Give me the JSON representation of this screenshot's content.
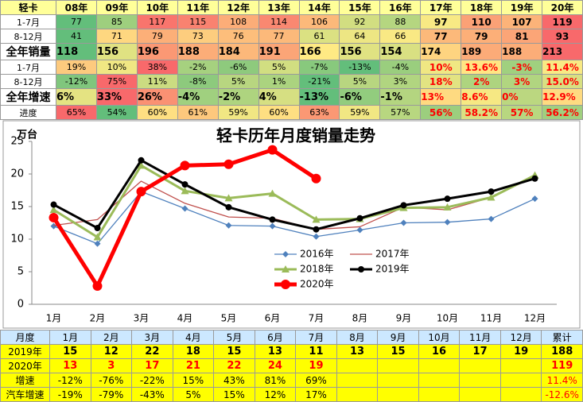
{
  "top_table": {
    "header": [
      "轻卡",
      "08年",
      "09年",
      "10年",
      "11年",
      "12年",
      "13年",
      "14年",
      "15年",
      "16年",
      "17年",
      "18年",
      "19年",
      "20年"
    ],
    "rows": [
      {
        "label": "1-7月",
        "cells": [
          "77",
          "85",
          "117",
          "115",
          "108",
          "114",
          "106",
          "92",
          "88",
          "97",
          "110",
          "107",
          "119"
        ]
      },
      {
        "label": "8-12月",
        "cells": [
          "41",
          "71",
          "79",
          "73",
          "76",
          "77",
          "61",
          "64",
          "66",
          "77",
          "79",
          "81",
          "93"
        ]
      },
      {
        "label": "全年销量",
        "cells": [
          "118",
          "156",
          "196",
          "188",
          "184",
          "191",
          "166",
          "156",
          "154",
          "174",
          "189",
          "188",
          "213"
        ]
      },
      {
        "label": "1-7月",
        "cells": [
          "19%",
          "10%",
          "38%",
          "-2%",
          "-6%",
          "5%",
          "-7%",
          "-13%",
          "-4%",
          "10%",
          "13.6%",
          "-3%",
          "11.4%"
        ]
      },
      {
        "label": "8-12月",
        "cells": [
          "-12%",
          "75%",
          "11%",
          "-8%",
          "5%",
          "1%",
          "-21%",
          "5%",
          "3%",
          "18%",
          "2%",
          "3%",
          "15.0%"
        ]
      },
      {
        "label": "全年增速",
        "cells": [
          "6%",
          "33%",
          "26%",
          "-4%",
          "-2%",
          "4%",
          "-13%",
          "-6%",
          "-1%",
          "13%",
          "8.6%",
          "0%",
          "12.9%"
        ]
      },
      {
        "label": "进度",
        "cells": [
          "65%",
          "54%",
          "60%",
          "61%",
          "59%",
          "60%",
          "63%",
          "59%",
          "57%",
          "56%",
          "58.2%",
          "57%",
          "56.2%"
        ]
      }
    ]
  },
  "chart_data": {
    "type": "line",
    "title": "轻卡历年月度销量走势",
    "y_label": "万台",
    "categories": [
      "1月",
      "2月",
      "3月",
      "4月",
      "5月",
      "6月",
      "7月",
      "8月",
      "9月",
      "10月",
      "11月",
      "12月"
    ],
    "ylim": [
      0,
      25
    ],
    "yticks": [
      0,
      5,
      10,
      15,
      20,
      25
    ],
    "grid": false,
    "series": [
      {
        "name": "2016年",
        "color": "#4f81bd",
        "marker": "diamond",
        "values": [
          12,
          9.3,
          17.3,
          14.7,
          12.1,
          12,
          10.4,
          11.4,
          12.5,
          12.6,
          13.1,
          16.2
        ]
      },
      {
        "name": "2017年",
        "color": "#c0504d",
        "marker": "none",
        "values": [
          12.1,
          13,
          18.9,
          15.5,
          13.4,
          13.2,
          11.5,
          11.9,
          14.9,
          14.5,
          16.4,
          19.6
        ]
      },
      {
        "name": "2018年",
        "color": "#9bbb59",
        "marker": "triangle",
        "values": [
          14.5,
          10.3,
          21.3,
          17.4,
          16.3,
          17,
          13,
          13.1,
          14.8,
          14.9,
          16.4,
          19.8
        ]
      },
      {
        "name": "2019年",
        "color": "#000000",
        "marker": "circle",
        "values": [
          15.3,
          11.7,
          22.1,
          18.4,
          14.9,
          13,
          11.5,
          13.2,
          15.2,
          16.2,
          17.3,
          19.3
        ]
      },
      {
        "name": "2020年",
        "color": "#ff0000",
        "marker": "circle",
        "values": [
          13.3,
          2.8,
          17.3,
          21.3,
          21.5,
          23.7,
          19.3,
          null,
          null,
          null,
          null,
          null
        ]
      }
    ]
  },
  "bottom_table": {
    "header": [
      "月度",
      "1月",
      "2月",
      "3月",
      "4月",
      "5月",
      "6月",
      "7月",
      "8月",
      "9月",
      "10月",
      "11月",
      "12月",
      "累计"
    ],
    "rows": [
      {
        "label": "2019年",
        "cells": [
          "15",
          "12",
          "22",
          "18",
          "15",
          "13",
          "11",
          "13",
          "15",
          "16",
          "17",
          "19",
          "188"
        ]
      },
      {
        "label": "2020年",
        "cells": [
          "13",
          "3",
          "17",
          "21",
          "22",
          "24",
          "19",
          null,
          null,
          null,
          null,
          null,
          "119"
        ]
      },
      {
        "label": "增速",
        "cells": [
          "-12%",
          "-76%",
          "-22%",
          "15%",
          "43%",
          "81%",
          "69%",
          null,
          null,
          null,
          null,
          null,
          "11.4%"
        ]
      },
      {
        "label": "汽车增速",
        "cells": [
          "-19%",
          "-79%",
          "-43%",
          "5%",
          "15%",
          "12%",
          "17%",
          null,
          null,
          null,
          null,
          null,
          "-12.6%"
        ]
      }
    ]
  }
}
